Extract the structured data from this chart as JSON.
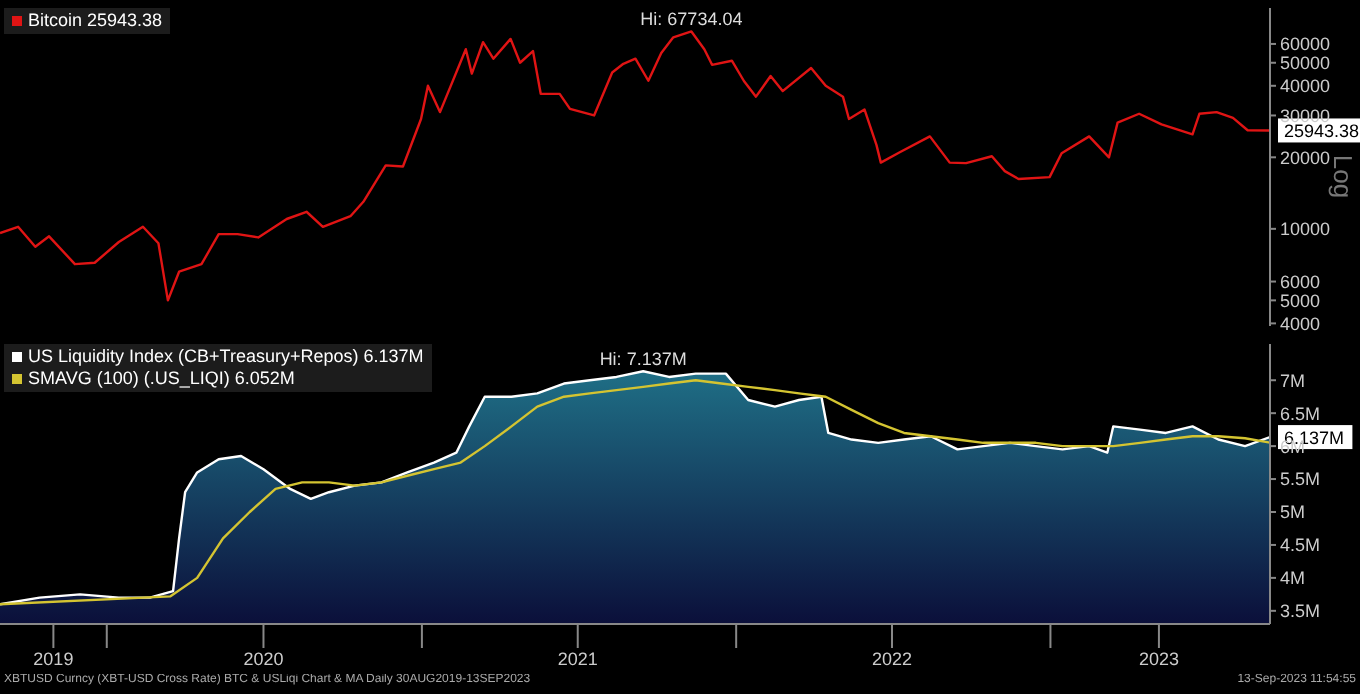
{
  "chart_data": [
    {
      "type": "line",
      "ylabel": "Log",
      "log": true,
      "ylim": [
        3900,
        85000
      ],
      "yticks": [
        4000,
        5000,
        6000,
        10000,
        20000,
        30000,
        40000,
        50000,
        60000
      ],
      "xlim": [
        "2019-08-30",
        "2023-09-13"
      ],
      "tick_labels": "y",
      "legend": "top left",
      "grid": false,
      "marker": "none",
      "series": [
        {
          "name": "Bitcoin 25943.38",
          "color": "#e01414",
          "x": [
            "2019-08-30",
            "2019-09-20",
            "2019-10-10",
            "2019-10-26",
            "2019-11-25",
            "2019-12-18",
            "2020-01-15",
            "2020-02-12",
            "2020-03-01",
            "2020-03-12",
            "2020-03-25",
            "2020-04-20",
            "2020-05-10",
            "2020-06-01",
            "2020-06-25",
            "2020-07-28",
            "2020-08-20",
            "2020-09-08",
            "2020-10-10",
            "2020-10-25",
            "2020-11-20",
            "2020-12-10",
            "2020-12-31",
            "2021-01-08",
            "2021-01-22",
            "2021-02-21",
            "2021-02-28",
            "2021-03-13",
            "2021-03-25",
            "2021-04-14",
            "2021-04-25",
            "2021-05-10",
            "2021-05-19",
            "2021-06-10",
            "2021-06-22",
            "2021-07-20",
            "2021-08-10",
            "2021-08-23",
            "2021-09-06",
            "2021-09-21",
            "2021-10-06",
            "2021-10-20",
            "2021-11-10",
            "2021-11-25",
            "2021-12-04",
            "2021-12-27",
            "2022-01-10",
            "2022-01-24",
            "2022-02-10",
            "2022-02-24",
            "2022-03-29",
            "2022-04-15",
            "2022-05-05",
            "2022-05-12",
            "2022-05-30",
            "2022-06-13",
            "2022-06-18",
            "2022-07-10",
            "2022-08-14",
            "2022-09-06",
            "2022-09-25",
            "2022-10-25",
            "2022-11-09",
            "2022-11-25",
            "2022-12-31",
            "2023-01-14",
            "2023-02-15",
            "2023-03-10",
            "2023-03-20",
            "2023-04-14",
            "2023-05-10",
            "2023-06-15",
            "2023-06-23",
            "2023-07-13",
            "2023-08-01",
            "2023-08-18",
            "2023-09-13"
          ],
          "values": [
            9600,
            10200,
            8400,
            9300,
            7100,
            7200,
            8800,
            10200,
            8700,
            5000,
            6600,
            7100,
            9500,
            9500,
            9200,
            11000,
            11800,
            10200,
            11300,
            13000,
            18500,
            18300,
            29000,
            40000,
            31000,
            57000,
            45000,
            61000,
            52000,
            63000,
            50000,
            56000,
            37000,
            37000,
            32000,
            30000,
            45500,
            49500,
            52000,
            42000,
            55000,
            64000,
            67734.04,
            57000,
            49000,
            51000,
            41900,
            36000,
            44000,
            38000,
            47500,
            40000,
            36000,
            29000,
            31800,
            22500,
            19000,
            21000,
            24500,
            19000,
            18900,
            20200,
            17500,
            16200,
            16500,
            20800,
            24500,
            20000,
            28000,
            30500,
            27500,
            25000,
            30500,
            31000,
            29300,
            26000,
            25943.38
          ]
        }
      ],
      "annotations": [
        {
          "text": "Hi: 67734.04",
          "x": "2021-11-10",
          "y": 67734.04
        },
        {
          "text": "25943.38",
          "x": "2023-09-13",
          "y": 25943.38
        }
      ]
    },
    {
      "type": "area",
      "ylim": [
        3.3,
        7.55
      ],
      "yticks": [
        {
          "value": 3.5,
          "label": "3.5M"
        },
        {
          "value": 4,
          "label": "4M"
        },
        {
          "value": 4.5,
          "label": "4.5M"
        },
        {
          "value": 5,
          "label": "5M"
        },
        {
          "value": 5.5,
          "label": "5.5M"
        },
        {
          "value": 6,
          "label": "6M"
        },
        {
          "value": 6.5,
          "label": "6.5M"
        },
        {
          "value": 7,
          "label": "7M"
        }
      ],
      "xlim": [
        "2019-08-30",
        "2023-09-13"
      ],
      "xticks": [
        {
          "value": "2019-10-31",
          "label": "2019"
        },
        {
          "value": "2020-01-01",
          "label": null
        },
        {
          "value": "2020-07-01",
          "label": "2020"
        },
        {
          "value": "2021-01-01",
          "label": null
        },
        {
          "value": "2021-07-01",
          "label": "2021"
        },
        {
          "value": "2022-01-01",
          "label": null
        },
        {
          "value": "2022-07-01",
          "label": "2022"
        },
        {
          "value": "2023-01-01",
          "label": null
        },
        {
          "value": "2023-05-07",
          "label": "2023"
        }
      ],
      "legend": "top left",
      "grid": false,
      "marker": "none",
      "series": [
        {
          "name": "US Liquidity Index (CB+Treasury+Repos) 6.137M",
          "color": "#ffffff",
          "x": [
            "2019-08-30",
            "2019-10-15",
            "2019-12-01",
            "2020-01-15",
            "2020-02-20",
            "2020-03-18",
            "2020-03-25",
            "2020-04-01",
            "2020-04-15",
            "2020-05-10",
            "2020-06-05",
            "2020-07-01",
            "2020-08-01",
            "2020-08-25",
            "2020-09-15",
            "2020-10-15",
            "2020-11-15",
            "2020-12-15",
            "2021-01-15",
            "2021-02-10",
            "2021-02-25",
            "2021-03-15",
            "2021-04-15",
            "2021-05-15",
            "2021-06-15",
            "2021-07-15",
            "2021-08-15",
            "2021-09-15",
            "2021-10-15",
            "2021-11-15",
            "2021-12-20",
            "2022-01-15",
            "2022-02-15",
            "2022-03-15",
            "2022-04-10",
            "2022-04-18",
            "2022-05-15",
            "2022-06-15",
            "2022-07-15",
            "2022-08-15",
            "2022-09-15",
            "2022-10-15",
            "2022-11-15",
            "2022-12-15",
            "2023-01-15",
            "2023-02-15",
            "2023-03-08",
            "2023-03-15",
            "2023-04-15",
            "2023-05-15",
            "2023-06-15",
            "2023-07-15",
            "2023-08-15",
            "2023-09-13"
          ],
          "values": [
            3.6,
            3.7,
            3.75,
            3.7,
            3.7,
            3.8,
            4.6,
            5.3,
            5.6,
            5.8,
            5.85,
            5.65,
            5.35,
            5.2,
            5.3,
            5.4,
            5.45,
            5.6,
            5.75,
            5.9,
            6.3,
            6.75,
            6.75,
            6.8,
            6.95,
            7.0,
            7.05,
            7.137,
            7.05,
            7.1,
            7.1,
            6.7,
            6.6,
            6.7,
            6.75,
            6.2,
            6.1,
            6.05,
            6.1,
            6.15,
            5.95,
            6.0,
            6.05,
            6.0,
            5.95,
            6.0,
            5.9,
            6.3,
            6.25,
            6.2,
            6.3,
            6.1,
            6.0,
            6.137
          ]
        },
        {
          "name": "SMAVG (100) (.US_LIQI) 6.052M",
          "type": "line",
          "color": "#d4c431",
          "x": [
            "2019-08-30",
            "2020-03-15",
            "2020-04-15",
            "2020-05-15",
            "2020-06-15",
            "2020-07-15",
            "2020-08-15",
            "2020-09-15",
            "2020-10-15",
            "2020-11-15",
            "2020-12-15",
            "2021-01-15",
            "2021-02-15",
            "2021-03-15",
            "2021-04-15",
            "2021-05-15",
            "2021-06-15",
            "2021-07-15",
            "2021-08-15",
            "2021-09-15",
            "2021-10-15",
            "2021-11-15",
            "2021-12-15",
            "2022-01-15",
            "2022-02-15",
            "2022-03-15",
            "2022-04-15",
            "2022-05-15",
            "2022-06-15",
            "2022-07-15",
            "2022-08-15",
            "2022-09-15",
            "2022-10-15",
            "2022-11-15",
            "2022-12-15",
            "2023-01-15",
            "2023-02-15",
            "2023-03-15",
            "2023-04-15",
            "2023-05-15",
            "2023-06-15",
            "2023-07-15",
            "2023-08-15",
            "2023-09-13"
          ],
          "values": [
            3.6,
            3.72,
            4.0,
            4.6,
            5.0,
            5.35,
            5.45,
            5.45,
            5.4,
            5.45,
            5.55,
            5.65,
            5.75,
            6.0,
            6.3,
            6.6,
            6.75,
            6.8,
            6.85,
            6.9,
            6.95,
            7.0,
            6.95,
            6.9,
            6.85,
            6.8,
            6.75,
            6.55,
            6.35,
            6.2,
            6.15,
            6.1,
            6.05,
            6.05,
            6.05,
            6.0,
            6.0,
            6.0,
            6.05,
            6.1,
            6.15,
            6.15,
            6.12,
            6.052
          ]
        }
      ],
      "annotations": [
        {
          "text": "Hi: 7.137M",
          "x": "2021-09-15",
          "y": 7.137
        },
        {
          "text": "6.137M",
          "x": "2023-09-13",
          "y": 6.137
        },
        "XBTUSD Curncy (XBT-USD Cross Rate) BTC & USLiqi Chart & MA  Daily 30AUG2019-13SEP2023",
        "13-Sep-2023 11:54:55"
      ]
    }
  ]
}
